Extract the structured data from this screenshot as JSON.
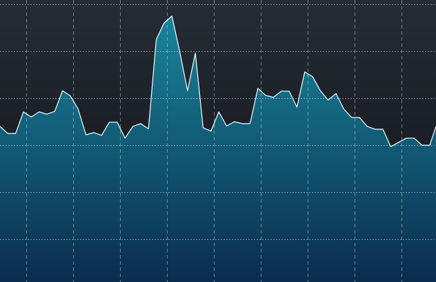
{
  "chart_data": {
    "type": "area",
    "color": "#1a8a9e",
    "line_color": "#ffffff",
    "grid": true,
    "x": [
      0,
      1,
      2,
      3,
      4,
      5,
      6,
      7,
      8,
      9,
      10,
      11,
      12,
      13,
      14,
      15,
      16,
      17,
      18,
      19,
      20,
      21,
      22,
      23,
      24,
      25,
      26,
      27,
      28,
      29,
      30,
      31,
      32,
      33,
      34,
      35,
      36,
      37,
      38,
      39,
      40,
      41,
      42,
      43,
      44,
      45,
      46,
      47,
      48,
      49,
      50,
      51,
      52,
      53,
      54,
      55,
      55.8
    ],
    "values": [
      3.4,
      3.25,
      3.25,
      3.71,
      3.6,
      3.71,
      3.66,
      3.72,
      4.16,
      4.05,
      3.77,
      3.22,
      3.27,
      3.21,
      3.49,
      3.49,
      3.15,
      3.4,
      3.46,
      3.35,
      5.25,
      5.6,
      5.75,
      4.99,
      4.16,
      4.96,
      3.37,
      3.3,
      3.71,
      3.41,
      3.5,
      3.46,
      3.46,
      4.21,
      4.06,
      4.02,
      4.15,
      4.15,
      3.81,
      4.56,
      4.46,
      4.16,
      3.96,
      4.1,
      3.77,
      3.59,
      3.59,
      3.4,
      3.34,
      3.34,
      2.97,
      3.06,
      3.15,
      3.15,
      3.0,
      3.0,
      3.4
    ],
    "xlim": [
      0,
      55.8
    ],
    "xticks": [
      3.35,
      9.35,
      15.35,
      21.35,
      27.35,
      33.35,
      39.35,
      45.35,
      51.35
    ],
    "ylim": [
      0.09,
      6.09
    ],
    "yticks": [
      1,
      2,
      3,
      4,
      5,
      6
    ]
  }
}
